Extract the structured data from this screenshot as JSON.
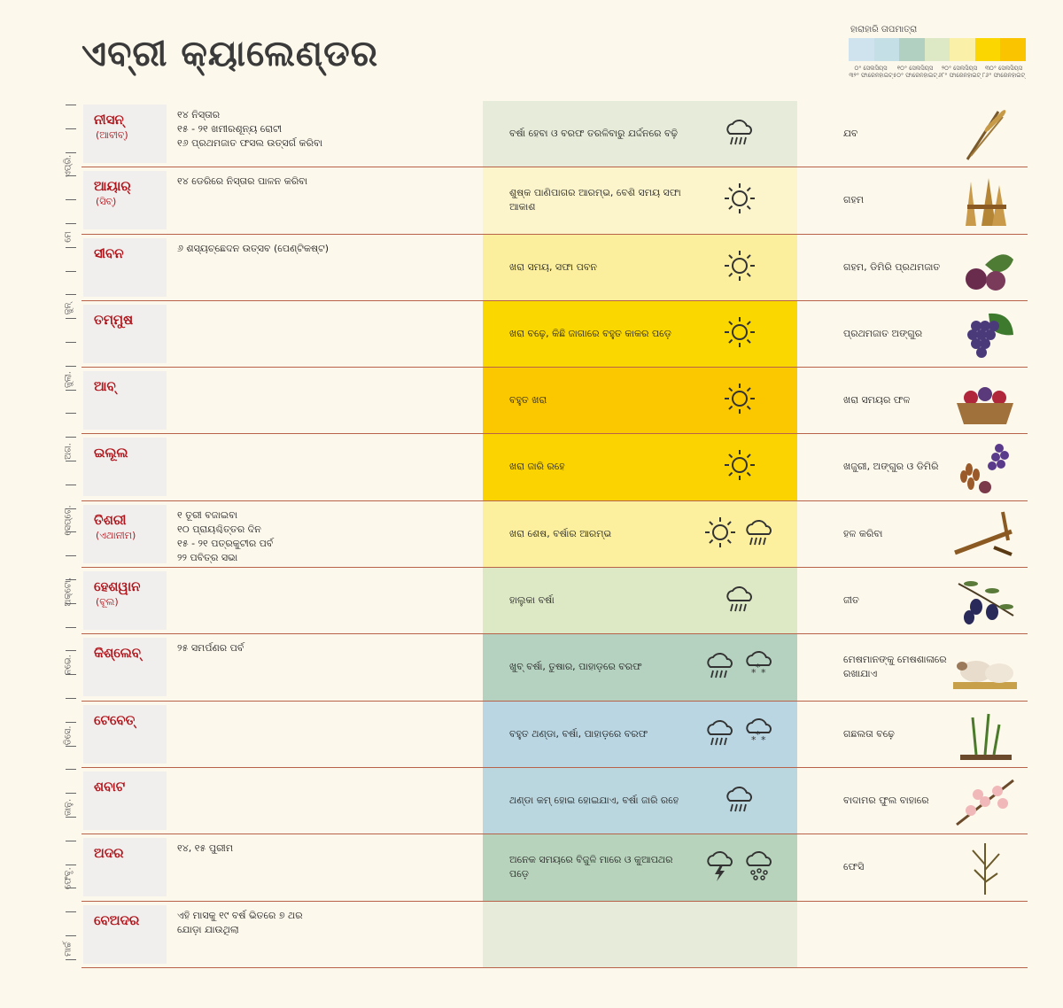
{
  "title": "ଏବ୍ରୀ କ୍ୟାଲେଣ୍ଡର",
  "legend": {
    "title": "ହାରାହାରି ତାପମାତ୍ରା",
    "colors": [
      "#cfe3ef",
      "#c5dfe6",
      "#b2d0c2",
      "#dce9c4",
      "#fbf0a8",
      "#fbd600",
      "#fbc400"
    ],
    "labels": [
      "୦° ସେଲସିୟସ ୩୨° ଫାରେନହାଇଟ୍",
      "୧୦° ସେଲସିୟସ ୫୦° ଫାରେନହାଇଟ୍",
      "୨୦° ସେଲସିୟସ ୬୮° ଫାରେନହାଇଟ୍",
      "୩୦° ସେଲସିୟସ ୮୬° ଫାରେନହାଇଟ୍"
    ]
  },
  "side_months": [
    "ଏପ୍ରି.",
    "ମେ",
    "ଜୁନ୍",
    "ଜୁଲା.",
    "ଅଗ.",
    "ସେପ୍ଟେ.",
    "ଅକ୍ଟୋ.",
    "ନଭେ.",
    "ଡିସେ.",
    "ଜାନୁ.",
    "ଫେବୃ.",
    "ମାର୍ଚ୍ଚ"
  ],
  "months": [
    {
      "name": "ନୀସନ୍",
      "alt": "(ଆବୀବ୍)",
      "events": [
        "୧୪ ନିସ୍ତାର",
        "୧୫ - ୨୧ ଖମୀରଶୂନ୍ୟ ରୋଟୀ",
        "୧୬ ପ୍ରଥମଜାତ ଫସଲ ଉତ୍ସର୍ଗ କରିବା"
      ],
      "weather": "ବର୍ଷା ହେବା ଓ ବରଫ ତରଳିବାରୁ ଯର୍ଦ୍ଦନରେ ବଢ଼ି",
      "weather_bg": "#e6ecd9",
      "icons": [
        "rain-cloud"
      ],
      "crop": "ଯବ",
      "crop_icon": "barley"
    },
    {
      "name": "ଆୟାର୍",
      "alt": "(ସିବ୍)",
      "events": [
        "୧୪ ଡେରିରେ ନିସ୍ତାର ପାଳନ କରିବା"
      ],
      "weather": "ଶୁଷ୍କ ପାଣିପାଗର ଆରମ୍ଭ, ବେଶି ସମୟ ସଫା ଆକାଶ",
      "weather_bg": "#fcf5cc",
      "icons": [
        "sun"
      ],
      "crop": "ଗହମ",
      "crop_icon": "wheat"
    },
    {
      "name": "ସୀବନ",
      "alt": "",
      "events": [
        "୬ ଶସ୍ୟଚ୍ଛେଦନ ଉତ୍ସବ (ପେଣ୍ଟିକଷ୍ଟ)"
      ],
      "weather": "ଖରା ସମୟ, ସଫା ପବନ",
      "weather_bg": "#fbee9c",
      "icons": [
        "sun"
      ],
      "crop": "ଗହମ, ଡିମିରି ପ୍ରଥମଜାତ",
      "crop_icon": "figs"
    },
    {
      "name": "ତମ୍ମୁଷ",
      "alt": "",
      "events": [],
      "weather": "ଖରା ବଢ଼େ, କିଛି ଜାଗାରେ ବହୁତ କାକର ପଡ଼େ",
      "weather_bg": "#fbd700",
      "icons": [
        "sun"
      ],
      "crop": "ପ୍ରଥମଜାତ ଅଙ୍ଗୁର",
      "crop_icon": "grapes"
    },
    {
      "name": "ଆବ୍",
      "alt": "",
      "events": [],
      "weather": "ବହୁତ ଖରା",
      "weather_bg": "#fbc800",
      "icons": [
        "sun"
      ],
      "crop": "ଖରା ସମୟର ଫଳ",
      "crop_icon": "fruit-basket"
    },
    {
      "name": "ଇଲୂଲ",
      "alt": "",
      "events": [],
      "weather": "ଖରା ଜାରି ରହେ",
      "weather_bg": "#fbd300",
      "icons": [
        "sun"
      ],
      "crop": "ଖଜୁରୀ, ଅଙ୍ଗୁର ଓ ଡିମିରି",
      "crop_icon": "dates"
    },
    {
      "name": "ତିଶରୀ",
      "alt": "(ଏଥାନୀମ)",
      "events": [
        "୧ ତୂରୀ ବଜାଇବା",
        "୧୦ ପ୍ରାୟଶ୍ଚିତ୍ତର ଦିନ",
        "୧୫ - ୨୧ ପତ୍ରକୁଟୀର ପର୍ବ",
        "୨୨ ପବିତ୍ର ସଭା"
      ],
      "weather": "ଖରା ଶେଷ, ବର୍ଷାର ଆରମ୍ଭ",
      "weather_bg": "#fcef9e",
      "icons": [
        "sun",
        "rain-cloud"
      ],
      "crop": "ହଳ କରିବା",
      "crop_icon": "plough"
    },
    {
      "name": "ହେଶୱାନ",
      "alt": "(ବୂଲ)",
      "events": [],
      "weather": "ହାଲୁକା ବର୍ଷା",
      "weather_bg": "#dde8c4",
      "icons": [
        "rain-cloud"
      ],
      "crop": "ଜୀତ",
      "crop_icon": "olives"
    },
    {
      "name": "କିଶ୍ଲେବ୍",
      "alt": "",
      "events": [
        "୨୫ ସମର୍ପଣର ପର୍ବ"
      ],
      "weather": "ଖୁବ୍ ବର୍ଷା, ତୁଷାର, ପାହାଡ଼ରେ ବରଫ",
      "weather_bg": "#b5d1bf",
      "icons": [
        "rain-cloud",
        "snow-cloud"
      ],
      "crop": "ମେଷମାନଙ୍କୁ ମେଷଶାଳାରେ ରଖାଯାଏ",
      "crop_icon": "sheep"
    },
    {
      "name": "ଟେବେତ୍",
      "alt": "",
      "events": [],
      "weather": "ବହୁତ ଥଣ୍ଡା, ବର୍ଷା, ପାହାଡ଼ରେ ବରଫ",
      "weather_bg": "#b9d6e2",
      "icons": [
        "rain-cloud",
        "snow-cloud"
      ],
      "crop": "ଗଛଲତା ବଢ଼େ",
      "crop_icon": "plant"
    },
    {
      "name": "ଶବାଟ",
      "alt": "",
      "events": [],
      "weather": "ଥଣ୍ଡା କମ୍ ହୋଇ ହୋଇଯାଏ, ବର୍ଷା ଜାରି ରହେ",
      "weather_bg": "#bad6df",
      "icons": [
        "rain-cloud"
      ],
      "crop": "ବାଦାମର ଫୁଲ ବାହାରେ",
      "crop_icon": "almond-blossom"
    },
    {
      "name": "ଅଦର",
      "alt": "",
      "events": [
        "୧୪, ୧୫ ପୁରୀମ"
      ],
      "weather": "ଅନେକ ସମୟରେ ବିଜୁଳି ମାରେ ଓ କୁଆପଥର ପଡ଼େ",
      "weather_bg": "#b7d3bb",
      "icons": [
        "storm-cloud",
        "hail-cloud"
      ],
      "crop": "ଫେସି",
      "crop_icon": "flax"
    },
    {
      "name": "ବେଅଦର",
      "alt": "",
      "events": [
        "ଏହି ମାସକୁ ୧୯ ବର୍ଷ ଭିତରେ ୭ ଥର",
        "ଯୋଡ଼ା ଯାଉଥିଲା"
      ],
      "weather": "",
      "weather_bg": "#e6ecd9",
      "icons": [],
      "crop": "",
      "crop_icon": ""
    }
  ]
}
